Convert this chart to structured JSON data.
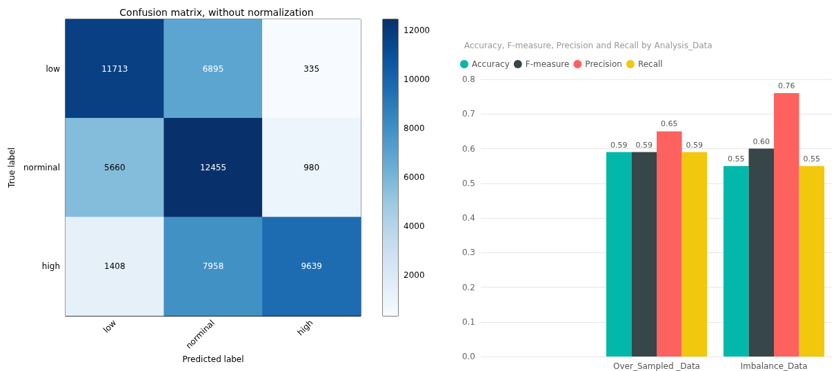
{
  "chart_data": [
    {
      "type": "heatmap",
      "title": "Confusion matrix, without normalization",
      "xlabel": "Predicted label",
      "ylabel": "True label",
      "categories": [
        "low",
        "norminal",
        "high"
      ],
      "y_categories": [
        "low",
        "norminal",
        "high"
      ],
      "cells": [
        [
          11713,
          6895,
          335
        ],
        [
          5660,
          12455,
          980
        ],
        [
          1408,
          7958,
          9639
        ]
      ],
      "clim": [
        335,
        12455
      ],
      "cticks": [
        2000,
        4000,
        6000,
        8000,
        10000,
        12000
      ],
      "data_labels": true
    },
    {
      "type": "bar",
      "title": "Accuracy, F-measure, Precision and Recall by Analysis_Data",
      "categories": [
        null,
        "Over_Sampled _Data",
        "Imbalance_Data"
      ],
      "series": [
        {
          "name": "Accuracy",
          "color": "#01b8aa",
          "values": [
            null,
            0.59,
            0.55
          ],
          "value_labels": [
            null,
            "0.59",
            "0.55"
          ]
        },
        {
          "name": "F-measure",
          "color": "#374649",
          "values": [
            null,
            0.59,
            0.6
          ],
          "value_labels": [
            null,
            "0.59",
            "0.60"
          ]
        },
        {
          "name": "Precision",
          "color": "#fd625e",
          "values": [
            null,
            0.65,
            0.76
          ],
          "value_labels": [
            null,
            "0.65",
            "0.76"
          ]
        },
        {
          "name": "Recall",
          "color": "#f2c80f",
          "values": [
            null,
            0.59,
            0.55
          ],
          "value_labels": [
            null,
            "0.59",
            "0.55"
          ]
        }
      ],
      "ylim": [
        0,
        0.8
      ],
      "yticks": [
        {
          "value": 0,
          "label": "0.0"
        },
        {
          "value": 0.1,
          "label": "0.1"
        },
        {
          "value": 0.2,
          "label": "0.2"
        },
        {
          "value": 0.3,
          "label": "0.3"
        },
        {
          "value": 0.4,
          "label": "0.4"
        },
        {
          "value": 0.5,
          "label": "0.5"
        },
        {
          "value": 0.6,
          "label": "0.6"
        },
        {
          "value": 0.7,
          "label": "0.7"
        },
        {
          "value": 0.8,
          "label": "0.8"
        }
      ],
      "grid": "y",
      "legend": "top left"
    }
  ]
}
